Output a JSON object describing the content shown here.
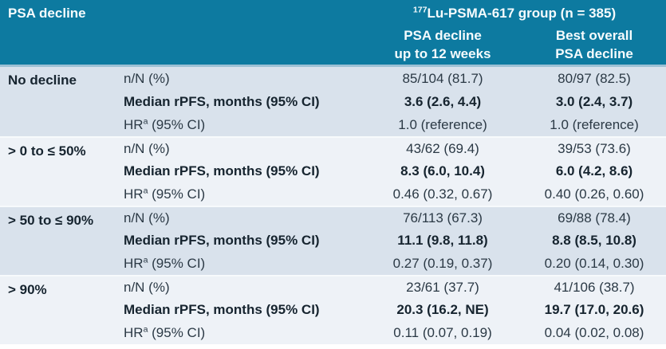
{
  "table": {
    "header": {
      "row_label": "PSA decline",
      "group_sup": "177",
      "group_title": "Lu-PSMA-617 group (n = 385)",
      "col_a": {
        "line1": "PSA decline",
        "line2": "up to 12 weeks"
      },
      "col_b": {
        "line1": "Best overall",
        "line2": "PSA decline"
      }
    },
    "labels": {
      "nn": "n/N (%)",
      "median": "Median rPFS, months (95% CI)",
      "hr_pre": "HR",
      "hr_sup": "a",
      "hr_post": " (95% CI)"
    },
    "groups": [
      {
        "category": "No decline",
        "nn": [
          "85/104 (81.7)",
          "80/97 (82.5)"
        ],
        "median": [
          "3.6 (2.6, 4.4)",
          "3.0 (2.4, 3.7)"
        ],
        "hr": [
          "1.0 (reference)",
          "1.0 (reference)"
        ]
      },
      {
        "category": "> 0 to ≤ 50%",
        "nn": [
          "43/62 (69.4)",
          "39/53 (73.6)"
        ],
        "median": [
          "8.3 (6.0, 10.4)",
          "6.0 (4.2, 8.6)"
        ],
        "hr": [
          "0.46 (0.32, 0.67)",
          "0.40 (0.26, 0.60)"
        ]
      },
      {
        "category": "> 50 to ≤ 90%",
        "nn": [
          "76/113 (67.3)",
          "69/88 (78.4)"
        ],
        "median": [
          "11.1 (9.8, 11.8)",
          "8.8 (8.5, 10.8)"
        ],
        "hr": [
          "0.27 (0.19, 0.37)",
          "0.20 (0.14, 0.30)"
        ]
      },
      {
        "category": "> 90%",
        "nn": [
          "23/61 (37.7)",
          "41/106 (38.7)"
        ],
        "median": [
          "20.3 (16.2, NE)",
          "19.7 (17.0, 20.6)"
        ],
        "hr": [
          "0.11 (0.07, 0.19)",
          "0.04 (0.02, 0.08)"
        ]
      }
    ]
  },
  "colors": {
    "header_teal": "#0d7aa0",
    "header_text": "#f5fbfd",
    "row_shaded": "#d9e2ec",
    "row_light": "#eef2f7",
    "group_divider": "#f7fafc",
    "header_divider": "#9cc0d4",
    "text_dark": "#16242f",
    "text_regular": "#2b3945"
  }
}
